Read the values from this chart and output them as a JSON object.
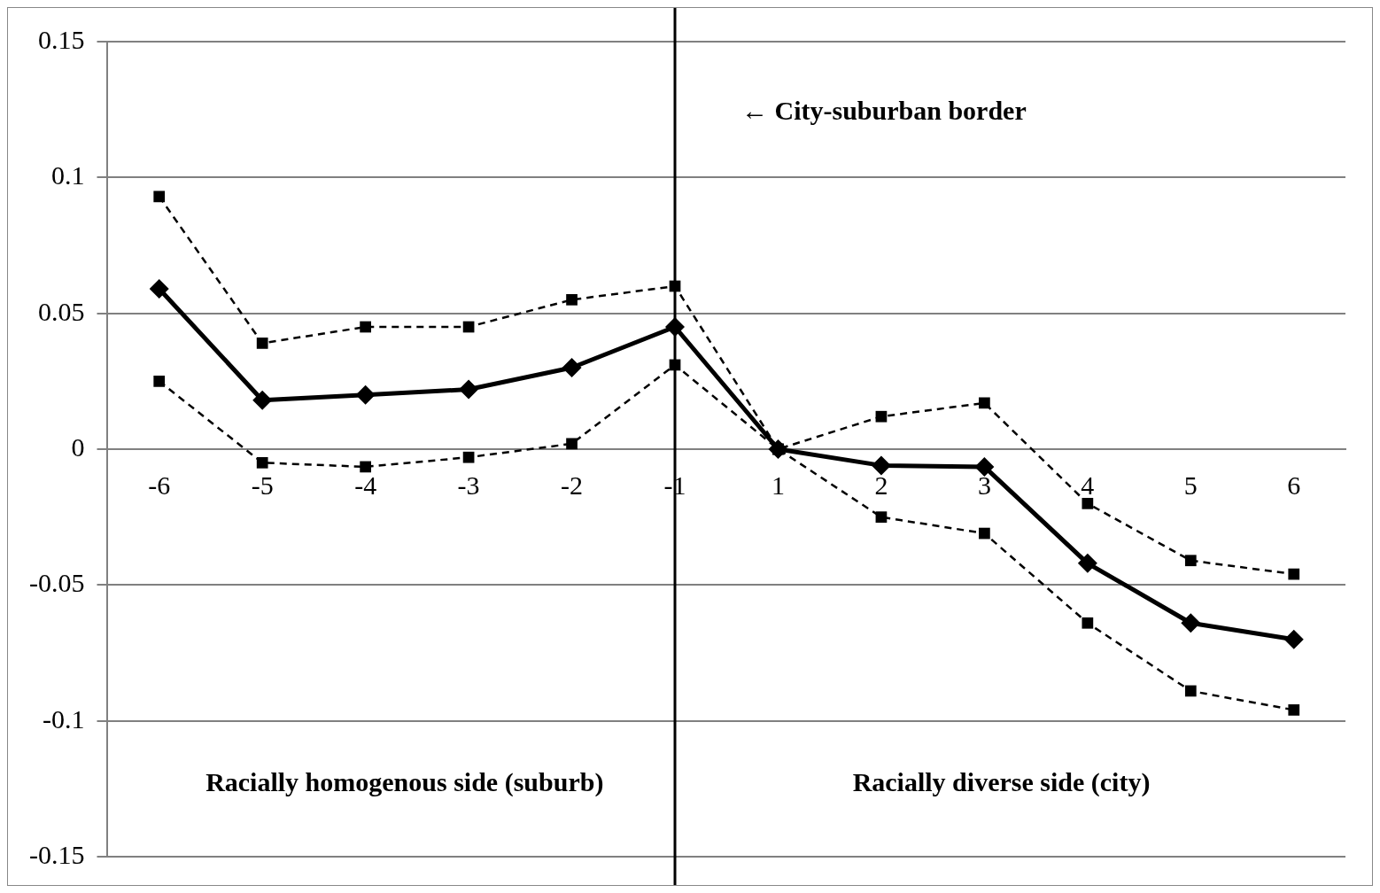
{
  "chart_data": {
    "type": "line",
    "categories": [
      "-6",
      "-5",
      "-4",
      "-3",
      "-2",
      "-1",
      "1",
      "2",
      "3",
      "4",
      "5",
      "6"
    ],
    "series": [
      {
        "color": "#000000",
        "marker": "square",
        "line_style": "dashed",
        "values": [
          0.093,
          0.039,
          0.045,
          0.045,
          0.055,
          0.06,
          0,
          0.012,
          0.017,
          -0.02,
          -0.041,
          -0.046
        ]
      },
      {
        "color": "#000000",
        "marker": "diamond",
        "line_style": "solid",
        "values": [
          0.059,
          0.018,
          0.02,
          0.022,
          0.03,
          0.045,
          0,
          -0.006,
          -0.0065,
          -0.042,
          -0.064,
          -0.07
        ]
      },
      {
        "color": "#000000",
        "marker": "square",
        "line_style": "dashed",
        "values": [
          0.025,
          -0.005,
          -0.0065,
          -0.003,
          0.002,
          0.031,
          0,
          -0.025,
          -0.031,
          -0.064,
          -0.089,
          -0.096
        ]
      }
    ],
    "ylim": [
      -0.15,
      0.15
    ],
    "yticks": [
      -0.15,
      -0.1,
      -0.05,
      0,
      0.05,
      0.1,
      0.15
    ],
    "grid": "y",
    "legend": false,
    "ref_lines": [
      {
        "axis": "x",
        "value": "-1",
        "label": "← City-suburban border",
        "color": "#000000"
      }
    ],
    "annotations": [
      "Racially homogenous side (suburb)",
      "Racially diverse side (city)"
    ]
  }
}
